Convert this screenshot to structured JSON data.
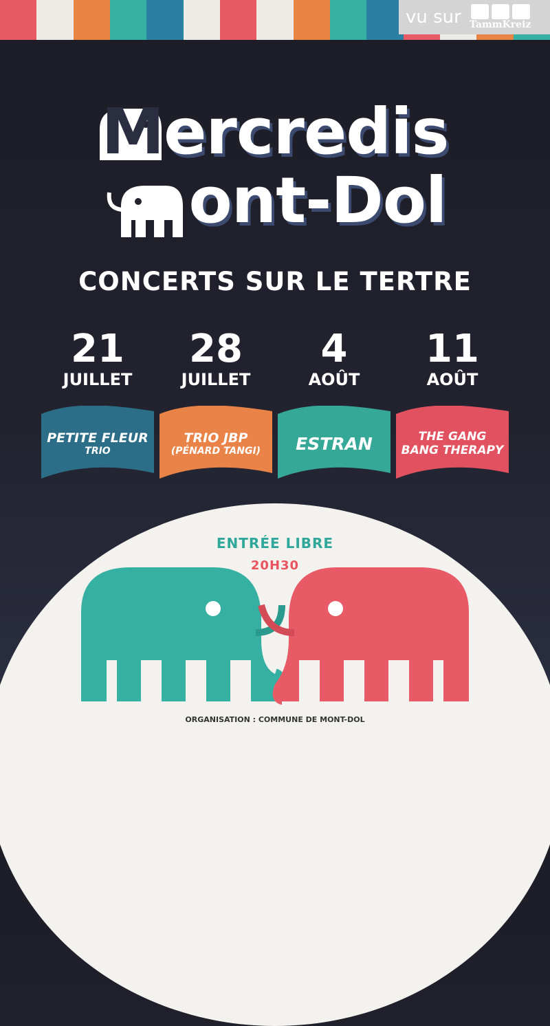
{
  "badge": {
    "text": "vu sur",
    "brand": "TammKreiz"
  },
  "title": {
    "line1": "ercredis",
    "line2": "ont-Dol",
    "full1": "Mercredis",
    "full2": "Mont-Dol"
  },
  "subtitle": "CONCERTS SUR LE TERTRE",
  "dates": [
    {
      "day": "21",
      "month": "JUILLET"
    },
    {
      "day": "28",
      "month": "JUILLET"
    },
    {
      "day": "4",
      "month": "AOÛT"
    },
    {
      "day": "11",
      "month": "AOÛT"
    }
  ],
  "bands": [
    {
      "name": "PETITE FLEUR",
      "sub": "TRIO",
      "color": "#2c6e88"
    },
    {
      "name": "TRIO JBP",
      "sub": "(PÉNARD TANGI)",
      "color": "#e98347"
    },
    {
      "name": "ESTRAN",
      "sub": "",
      "color": "#36a898"
    },
    {
      "name": "THE GANG",
      "sub": "BANG THERAPY",
      "color": "#e2515f"
    }
  ],
  "entry": "ENTRÉE LIBRE",
  "time": "20H30",
  "organisation": "ORGANISATION : COMMUNE DE MONT-DOL",
  "colors": {
    "teal": "#36b0a3",
    "red": "#e85a66",
    "orange": "#ea8444",
    "blue": "#2a7fa3",
    "white": "#ecebe6"
  }
}
